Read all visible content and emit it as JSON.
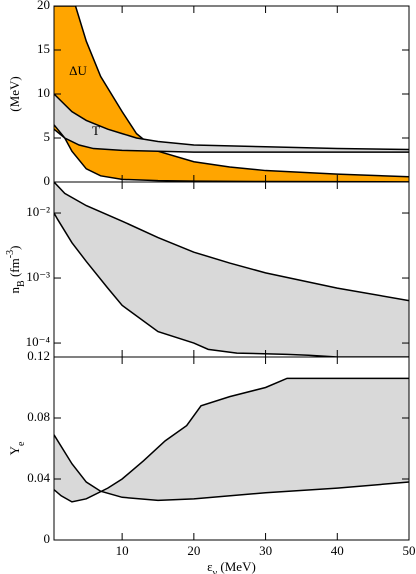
{
  "chart_data": [
    {
      "type": "band",
      "ylabel": [
        {
          "text": "(MeV)"
        }
      ],
      "xlim": [
        0.5,
        50
      ],
      "xticks": [
        10,
        20,
        30,
        40,
        50
      ],
      "ylim": [
        0,
        20
      ],
      "yticks": [
        0,
        5,
        10,
        15,
        20
      ],
      "bands": [
        {
          "name": "ΔU",
          "color": "#ffa500",
          "upper": {
            "x": [
              0.5,
              3.5,
              5,
              7,
              10,
              12,
              15,
              20,
              25,
              30,
              40,
              50
            ],
            "values": [
              20,
              20,
              16,
              12,
              8,
              5.5,
              3.5,
              2.3,
              1.7,
              1.3,
              0.9,
              0.6
            ]
          },
          "lower": {
            "x": [
              0.5,
              2,
              3,
              5,
              7,
              10,
              15,
              20,
              30,
              50
            ],
            "values": [
              6,
              5,
              3.5,
              1.5,
              0.7,
              0.3,
              0.15,
              0.1,
              0.05,
              0.02
            ]
          }
        },
        {
          "name": "T",
          "color": "#d9d9d9",
          "upper": {
            "x": [
              0.5,
              3,
              5,
              8,
              10,
              12,
              15,
              20,
              30,
              40,
              50
            ],
            "values": [
              10,
              8,
              7,
              6,
              5.5,
              5,
              4.6,
              4.2,
              4,
              3.8,
              3.7
            ]
          },
          "lower": {
            "x": [
              0.5,
              1,
              2,
              4,
              6,
              10,
              15,
              20,
              30,
              50
            ],
            "values": [
              6.5,
              6,
              5,
              4.2,
              3.8,
              3.6,
              3.5,
              3.4,
              3.4,
              3.4
            ]
          }
        }
      ]
    },
    {
      "type": "band",
      "log_y": true,
      "ylabel": [
        {
          "text": "n"
        },
        {
          "text": "B",
          "shift": "sub"
        },
        {
          "text": " (fm"
        },
        {
          "text": "-3",
          "shift": "super"
        },
        {
          "text": ")"
        }
      ],
      "xlim": [
        0.5,
        50
      ],
      "xticks": [
        10,
        20,
        30,
        40,
        50
      ],
      "ylim": [
        6.1e-05,
        0.03
      ],
      "yticks": [
        {
          "value": 0.0001,
          "label": "10⁻⁴"
        },
        {
          "value": 0.001,
          "label": "10⁻³"
        },
        {
          "value": 0.01,
          "label": "10⁻²"
        }
      ],
      "bands": [
        {
          "color": "#d9d9d9",
          "upper": {
            "x": [
              0.5,
              2,
              5,
              10,
              15,
              20,
              25,
              30,
              40,
              50
            ],
            "values": [
              0.03,
              0.02,
              0.013,
              0.0075,
              0.0042,
              0.0025,
              0.0017,
              0.0012,
              0.0007,
              0.00045
            ]
          },
          "lower": {
            "x": [
              0.5,
              1,
              3,
              5,
              8,
              10,
              15,
              20,
              22,
              26,
              33,
              36,
              40,
              50
            ],
            "values": [
              0.01,
              0.008,
              0.0035,
              0.0018,
              0.0007,
              0.00038,
              0.00015,
              0.0001,
              8e-05,
              7e-05,
              6.7e-05,
              6.5e-05,
              6.1e-05,
              6.1e-05
            ]
          }
        }
      ]
    },
    {
      "type": "band",
      "ylabel": [
        {
          "text": "Y"
        },
        {
          "text": "e",
          "shift": "sub"
        }
      ],
      "xlabel": [
        {
          "text": "ε"
        },
        {
          "text": "ν",
          "shift": "sub"
        },
        {
          "text": " (MeV)"
        }
      ],
      "xlim": [
        0.5,
        50
      ],
      "xticks": [
        10,
        20,
        30,
        40,
        50
      ],
      "ylim": [
        0,
        0.12
      ],
      "yticks": [
        0,
        0.04,
        0.08,
        0.12
      ],
      "bands": [
        {
          "color": "#d9d9d9",
          "upper": {
            "x": [
              0.5,
              1.5,
              3,
              5,
              8,
              10,
              13,
              16,
              19,
              21,
              25,
              30,
              33,
              50
            ],
            "values": [
              0.033,
              0.029,
              0.025,
              0.027,
              0.034,
              0.04,
              0.052,
              0.065,
              0.075,
              0.088,
              0.094,
              0.1,
              0.106,
              0.106
            ]
          },
          "lower": {
            "x": [
              0.5,
              3,
              5,
              7,
              10,
              15,
              20,
              30,
              40,
              50
            ],
            "values": [
              0.069,
              0.05,
              0.038,
              0.032,
              0.028,
              0.026,
              0.027,
              0.031,
              0.034,
              0.038
            ]
          }
        }
      ]
    }
  ]
}
